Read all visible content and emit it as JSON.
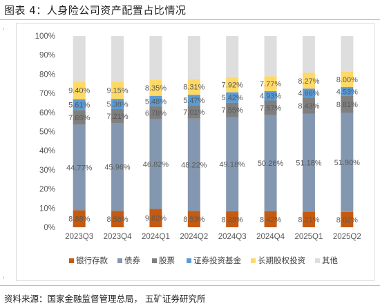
{
  "title": "图表 4：人身险公司资产配置占比情况",
  "source": "资料来源：国家金融监督管理总局， 五矿证券研究所",
  "chart_data": {
    "type": "bar",
    "stacked": true,
    "percent_stacked": true,
    "categories": [
      "2023Q3",
      "2023Q4",
      "2024Q1",
      "2024Q2",
      "2024Q3",
      "2024Q4",
      "2025Q1",
      "2025Q2"
    ],
    "ylim": [
      0,
      100
    ],
    "yticks": [
      "0%",
      "10%",
      "20%",
      "30%",
      "40%",
      "50%",
      "60%",
      "70%",
      "80%",
      "90%",
      "100%"
    ],
    "legend_position": "bottom",
    "grid": false,
    "series": [
      {
        "name": "银行存款",
        "color": "#C55A11",
        "values": [
          8.88,
          8.56,
          9.62,
          8.53,
          8.38,
          8.42,
          8.21,
          8.02
        ],
        "labels": [
          "8.88%",
          "8.56%",
          "9.62%",
          "8.53%",
          "8.38%",
          "8.42%",
          "8.21%",
          "8.02%"
        ]
      },
      {
        "name": "债券",
        "color": "#8497B0",
        "values": [
          44.77,
          45.96,
          46.82,
          48.22,
          49.18,
          50.26,
          51.18,
          51.9
        ],
        "labels": [
          "44.77%",
          "45.96%",
          "46.82%",
          "48.22%",
          "49.18%",
          "50.26%",
          "51.18%",
          "51.90%"
        ]
      },
      {
        "name": "股票",
        "color": "#7F7F7F",
        "values": [
          7.65,
          7.21,
          6.78,
          7.01,
          7.55,
          7.57,
          8.43,
          8.81
        ],
        "labels": [
          "7.65%",
          "7.21%",
          "6.78%",
          "7.01%",
          "7.55%",
          "7.57%",
          "8.43%",
          "8.81%"
        ]
      },
      {
        "name": "证券投资基金",
        "color": "#5B9BD5",
        "values": [
          5.61,
          5.38,
          5.48,
          5.47,
          5.42,
          4.93,
          4.66,
          4.53
        ],
        "labels": [
          "5.61%",
          "5.38%",
          "5.48%",
          "5.47%",
          "5.42%",
          "4.93%",
          "4.66%",
          "4.53%"
        ]
      },
      {
        "name": "长期股权投资",
        "color": "#FFD966",
        "values": [
          9.4,
          9.15,
          8.35,
          8.31,
          7.92,
          7.77,
          8.27,
          8.0
        ],
        "labels": [
          "9.40%",
          "9.15%",
          "8.35%",
          "8.31%",
          "7.92%",
          "7.77%",
          "8.27%",
          "8.00%"
        ]
      },
      {
        "name": "其他",
        "color": "#DEDEDE",
        "values": [
          23.69,
          23.74,
          22.95,
          22.46,
          21.55,
          21.05,
          19.25,
          18.74
        ],
        "labels": []
      }
    ]
  }
}
